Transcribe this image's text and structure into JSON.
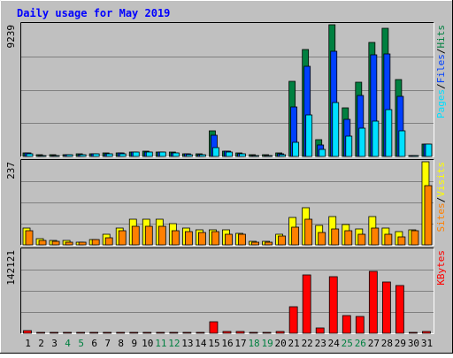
{
  "chart_data": {
    "type": "bar",
    "title": "Daily usage for May 2019",
    "categories": [
      "1",
      "2",
      "3",
      "4",
      "5",
      "6",
      "7",
      "8",
      "9",
      "10",
      "11",
      "12",
      "13",
      "14",
      "15",
      "16",
      "17",
      "18",
      "19",
      "20",
      "21",
      "22",
      "23",
      "24",
      "25",
      "26",
      "27",
      "28",
      "29",
      "30",
      "31"
    ],
    "weekend_days": [
      "4",
      "5",
      "11",
      "12",
      "18",
      "19",
      "25",
      "26"
    ],
    "grid": true,
    "panels": [
      {
        "name": "hits-files-pages",
        "ymax": 9239,
        "ymax_label": "9239",
        "legend_right": [
          "Pages",
          "/",
          "Files",
          "/",
          "Hits"
        ],
        "series": [
          {
            "name": "Hits",
            "color": "#008040",
            "values": [
              260,
              110,
              110,
              130,
              180,
              200,
              220,
              250,
              330,
              350,
              330,
              300,
              200,
              180,
              1800,
              400,
              230,
              110,
              110,
              250,
              5300,
              7500,
              1200,
              9239,
              3400,
              5200,
              8000,
              9000,
              5400,
              90,
              870
            ]
          },
          {
            "name": "Files",
            "color": "#0040ff",
            "values": [
              230,
              80,
              90,
              110,
              150,
              170,
              190,
              220,
              300,
              320,
              300,
              270,
              170,
              150,
              1500,
              350,
              200,
              90,
              90,
              210,
              3500,
              6300,
              800,
              7400,
              2600,
              4300,
              7100,
              7200,
              4200,
              60,
              850
            ]
          },
          {
            "name": "Pages",
            "color": "#00e0ff",
            "values": [
              200,
              70,
              80,
              100,
              140,
              160,
              170,
              200,
              280,
              300,
              280,
              250,
              150,
              140,
              600,
              300,
              170,
              80,
              80,
              100,
              1000,
              2900,
              500,
              3800,
              1400,
              2000,
              2500,
              3300,
              1800,
              50,
              850
            ]
          }
        ]
      },
      {
        "name": "visits-sites",
        "ymax": 237,
        "ymax_label": "237",
        "legend_right": [
          "Sites",
          "/",
          "Visits"
        ],
        "series": [
          {
            "name": "Visits",
            "color": "#ffff00",
            "values": [
              48,
              18,
              13,
              13,
              8,
              16,
              29,
              48,
              72,
              72,
              74,
              60,
              47,
              42,
              44,
              42,
              34,
              10,
              10,
              30,
              77,
              107,
              56,
              80,
              58,
              45,
              80,
              48,
              39,
              44,
              237
            ]
          },
          {
            "name": "Sites",
            "color": "#ff8000",
            "values": [
              40,
              12,
              10,
              8,
              7,
              14,
              20,
              40,
              52,
              52,
              52,
              40,
              37,
              35,
              37,
              30,
              30,
              8,
              8,
              24,
              50,
              72,
              36,
              46,
              40,
              31,
              48,
              30,
              22,
              40,
              170
            ]
          }
        ]
      },
      {
        "name": "kbytes",
        "ymax": 142121,
        "ymax_label": "142121",
        "legend_right": [
          "KBytes"
        ],
        "series": [
          {
            "name": "KBytes",
            "color": "#ff0000",
            "values": [
              5000,
              1900,
              1900,
              1900,
              1900,
              1900,
              1900,
              1900,
              1900,
              1900,
              1900,
              1900,
              1900,
              1900,
              19000,
              2900,
              2900,
              1900,
              1900,
              2900,
              45000,
              100000,
              9000,
              97000,
              30000,
              28000,
              106000,
              87000,
              81000,
              1900,
              2900
            ]
          }
        ]
      }
    ]
  }
}
